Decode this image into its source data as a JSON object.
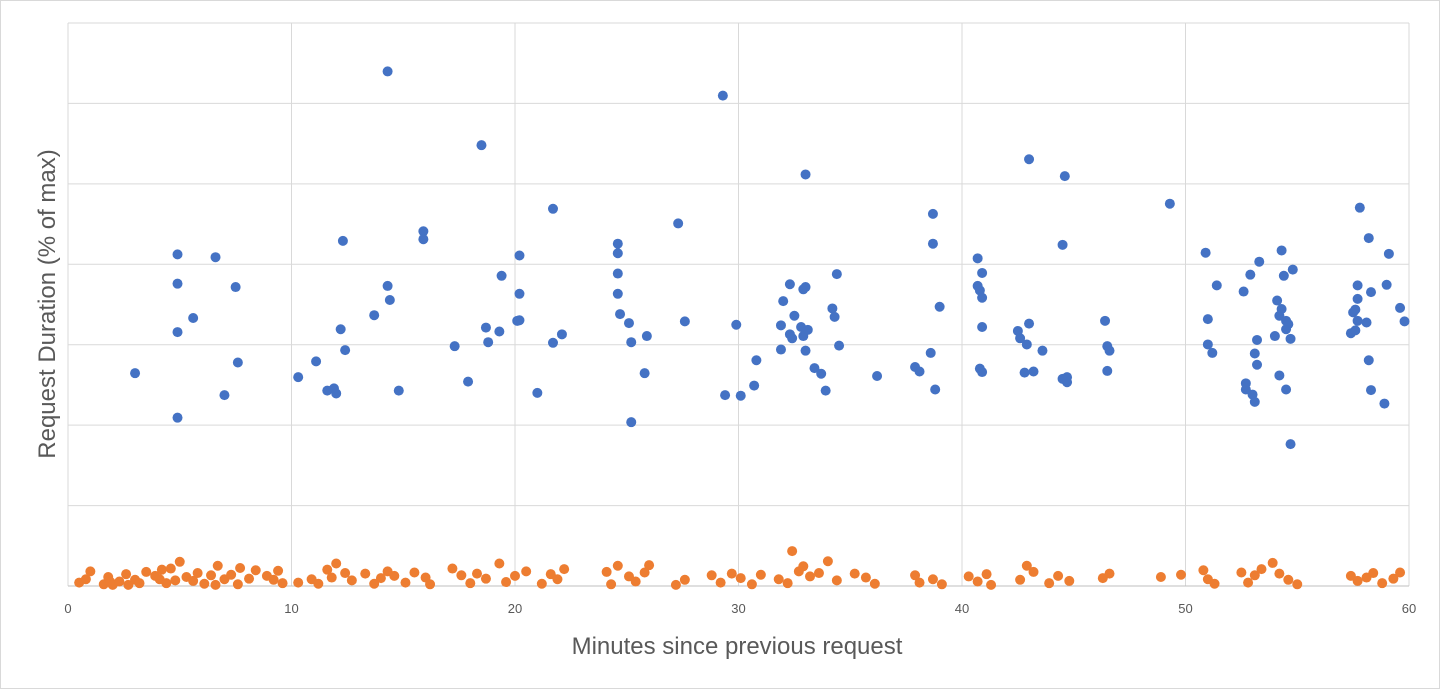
{
  "chart_data": {
    "type": "scatter",
    "title": "",
    "xlabel": "Minutes since previous request",
    "ylabel": "Request Duration (% of max)",
    "xlim": [
      0,
      60
    ],
    "ylim": [
      0,
      100
    ],
    "x_ticks": [
      "0",
      "10",
      "20",
      "30",
      "40",
      "50",
      "60"
    ],
    "grid": true,
    "legend": "none",
    "series": [
      {
        "color": "#4472C4",
        "points": [
          [
            3.0,
            37.8
          ],
          [
            4.9,
            29.9
          ],
          [
            4.9,
            45.1
          ],
          [
            4.9,
            53.7
          ],
          [
            4.9,
            58.9
          ],
          [
            5.6,
            47.6
          ],
          [
            6.6,
            58.4
          ],
          [
            7.0,
            33.9
          ],
          [
            7.5,
            53.1
          ],
          [
            7.6,
            39.7
          ],
          [
            10.3,
            37.1
          ],
          [
            11.1,
            39.9
          ],
          [
            11.6,
            34.7
          ],
          [
            11.9,
            35.1
          ],
          [
            12.0,
            34.2
          ],
          [
            12.2,
            45.6
          ],
          [
            12.3,
            61.3
          ],
          [
            12.4,
            41.9
          ],
          [
            13.7,
            48.1
          ],
          [
            14.3,
            53.3
          ],
          [
            14.3,
            91.4
          ],
          [
            14.4,
            50.8
          ],
          [
            14.8,
            34.7
          ],
          [
            15.9,
            61.6
          ],
          [
            15.9,
            63.0
          ],
          [
            17.3,
            42.6
          ],
          [
            17.9,
            36.3
          ],
          [
            18.5,
            78.3
          ],
          [
            18.7,
            45.9
          ],
          [
            18.8,
            43.3
          ],
          [
            19.3,
            45.2
          ],
          [
            19.4,
            55.1
          ],
          [
            20.1,
            47.1
          ],
          [
            20.2,
            47.2
          ],
          [
            20.2,
            51.9
          ],
          [
            20.2,
            58.7
          ],
          [
            21.0,
            34.3
          ],
          [
            21.7,
            67.0
          ],
          [
            21.7,
            43.2
          ],
          [
            22.1,
            44.7
          ],
          [
            24.6,
            55.5
          ],
          [
            24.6,
            60.8
          ],
          [
            24.6,
            59.1
          ],
          [
            24.6,
            51.9
          ],
          [
            24.7,
            48.3
          ],
          [
            25.1,
            46.7
          ],
          [
            25.2,
            29.1
          ],
          [
            25.2,
            43.3
          ],
          [
            25.8,
            37.8
          ],
          [
            25.9,
            44.4
          ],
          [
            27.3,
            64.4
          ],
          [
            27.6,
            47.0
          ],
          [
            29.3,
            87.1
          ],
          [
            29.4,
            33.9
          ],
          [
            29.9,
            46.4
          ],
          [
            30.1,
            33.8
          ],
          [
            30.7,
            35.6
          ],
          [
            30.8,
            40.1
          ],
          [
            31.9,
            42.0
          ],
          [
            31.9,
            46.3
          ],
          [
            32.0,
            50.6
          ],
          [
            32.3,
            44.7
          ],
          [
            32.3,
            53.6
          ],
          [
            32.4,
            44.0
          ],
          [
            32.5,
            48.0
          ],
          [
            32.8,
            46.0
          ],
          [
            32.9,
            44.4
          ],
          [
            32.9,
            52.7
          ],
          [
            33.0,
            53.1
          ],
          [
            33.0,
            73.1
          ],
          [
            33.0,
            41.8
          ],
          [
            33.1,
            45.5
          ],
          [
            33.4,
            38.7
          ],
          [
            33.7,
            37.7
          ],
          [
            33.9,
            34.7
          ],
          [
            34.2,
            49.3
          ],
          [
            34.3,
            47.8
          ],
          [
            34.4,
            55.4
          ],
          [
            34.5,
            42.7
          ],
          [
            36.2,
            37.3
          ],
          [
            37.9,
            38.9
          ],
          [
            38.1,
            38.1
          ],
          [
            38.6,
            41.4
          ],
          [
            38.7,
            60.8
          ],
          [
            38.7,
            66.1
          ],
          [
            38.8,
            34.9
          ],
          [
            39.0,
            49.6
          ],
          [
            40.7,
            58.2
          ],
          [
            40.7,
            53.3
          ],
          [
            40.8,
            52.5
          ],
          [
            40.8,
            38.6
          ],
          [
            40.9,
            51.2
          ],
          [
            40.9,
            55.6
          ],
          [
            40.9,
            38.0
          ],
          [
            40.9,
            46.0
          ],
          [
            42.5,
            45.3
          ],
          [
            42.6,
            44.0
          ],
          [
            42.8,
            37.9
          ],
          [
            42.9,
            42.9
          ],
          [
            43.0,
            46.6
          ],
          [
            43.0,
            75.8
          ],
          [
            43.2,
            38.1
          ],
          [
            43.6,
            41.8
          ],
          [
            44.5,
            60.6
          ],
          [
            44.5,
            36.8
          ],
          [
            44.6,
            72.8
          ],
          [
            44.7,
            36.2
          ],
          [
            44.7,
            37.1
          ],
          [
            46.4,
            47.1
          ],
          [
            46.5,
            38.2
          ],
          [
            46.5,
            42.6
          ],
          [
            46.6,
            41.8
          ],
          [
            49.3,
            67.9
          ],
          [
            50.9,
            59.2
          ],
          [
            51.0,
            42.9
          ],
          [
            51.0,
            47.4
          ],
          [
            51.2,
            41.4
          ],
          [
            51.4,
            53.4
          ],
          [
            52.6,
            52.3
          ],
          [
            52.7,
            36.0
          ],
          [
            52.7,
            34.9
          ],
          [
            52.9,
            55.3
          ],
          [
            53.0,
            34.0
          ],
          [
            53.1,
            32.7
          ],
          [
            53.1,
            41.3
          ],
          [
            53.2,
            43.7
          ],
          [
            53.2,
            39.3
          ],
          [
            53.3,
            57.6
          ],
          [
            54.0,
            44.4
          ],
          [
            54.1,
            50.7
          ],
          [
            54.2,
            48.0
          ],
          [
            54.2,
            37.4
          ],
          [
            54.3,
            59.6
          ],
          [
            54.3,
            49.2
          ],
          [
            54.4,
            55.1
          ],
          [
            54.5,
            47.1
          ],
          [
            54.5,
            45.6
          ],
          [
            54.5,
            34.9
          ],
          [
            54.6,
            46.5
          ],
          [
            54.7,
            43.9
          ],
          [
            54.7,
            25.2
          ],
          [
            54.8,
            56.2
          ],
          [
            57.4,
            44.9
          ],
          [
            57.5,
            48.6
          ],
          [
            57.6,
            45.4
          ],
          [
            57.6,
            49.1
          ],
          [
            57.7,
            51.0
          ],
          [
            57.7,
            53.4
          ],
          [
            57.7,
            47.1
          ],
          [
            57.8,
            67.2
          ],
          [
            58.1,
            46.8
          ],
          [
            58.2,
            40.1
          ],
          [
            58.2,
            61.8
          ],
          [
            58.3,
            34.8
          ],
          [
            58.3,
            52.2
          ],
          [
            58.9,
            32.4
          ],
          [
            59.0,
            53.5
          ],
          [
            59.1,
            59.0
          ],
          [
            59.6,
            49.4
          ],
          [
            59.8,
            47.0
          ]
        ]
      },
      {
        "color": "#ED7D31",
        "points": [
          [
            0.5,
            0.6
          ],
          [
            0.8,
            1.2
          ],
          [
            1.0,
            2.6
          ],
          [
            1.6,
            0.3
          ],
          [
            1.8,
            1.6
          ],
          [
            1.9,
            0.7
          ],
          [
            2.0,
            0.2
          ],
          [
            2.3,
            0.8
          ],
          [
            2.6,
            2.1
          ],
          [
            2.7,
            0.2
          ],
          [
            3.0,
            1.1
          ],
          [
            3.2,
            0.5
          ],
          [
            3.5,
            2.5
          ],
          [
            3.9,
            1.8
          ],
          [
            4.1,
            1.2
          ],
          [
            4.2,
            2.9
          ],
          [
            4.4,
            0.5
          ],
          [
            4.6,
            3.1
          ],
          [
            4.8,
            1.0
          ],
          [
            5.0,
            4.3
          ],
          [
            5.3,
            1.6
          ],
          [
            5.6,
            0.9
          ],
          [
            5.8,
            2.3
          ],
          [
            6.1,
            0.4
          ],
          [
            6.4,
            1.9
          ],
          [
            6.6,
            0.2
          ],
          [
            6.7,
            3.6
          ],
          [
            7.0,
            1.2
          ],
          [
            7.3,
            2.0
          ],
          [
            7.6,
            0.3
          ],
          [
            7.7,
            3.2
          ],
          [
            8.1,
            1.3
          ],
          [
            8.4,
            2.8
          ],
          [
            8.9,
            1.8
          ],
          [
            9.2,
            1.1
          ],
          [
            9.4,
            2.7
          ],
          [
            9.6,
            0.5
          ],
          [
            10.3,
            0.6
          ],
          [
            10.9,
            1.2
          ],
          [
            11.2,
            0.4
          ],
          [
            11.6,
            2.9
          ],
          [
            11.8,
            1.5
          ],
          [
            12.0,
            4.0
          ],
          [
            12.4,
            2.3
          ],
          [
            12.7,
            1.0
          ],
          [
            13.3,
            2.2
          ],
          [
            13.7,
            0.4
          ],
          [
            14.0,
            1.4
          ],
          [
            14.3,
            2.6
          ],
          [
            14.6,
            1.8
          ],
          [
            15.1,
            0.6
          ],
          [
            15.5,
            2.4
          ],
          [
            16.0,
            1.5
          ],
          [
            16.2,
            0.3
          ],
          [
            17.2,
            3.1
          ],
          [
            17.6,
            1.9
          ],
          [
            18.0,
            0.5
          ],
          [
            18.3,
            2.2
          ],
          [
            18.7,
            1.3
          ],
          [
            19.3,
            4.0
          ],
          [
            19.6,
            0.7
          ],
          [
            20.0,
            1.8
          ],
          [
            20.5,
            2.6
          ],
          [
            21.2,
            0.4
          ],
          [
            21.6,
            2.1
          ],
          [
            21.9,
            1.2
          ],
          [
            22.2,
            3.0
          ],
          [
            24.1,
            2.5
          ],
          [
            24.3,
            0.3
          ],
          [
            24.6,
            3.6
          ],
          [
            25.1,
            1.7
          ],
          [
            25.4,
            0.8
          ],
          [
            25.8,
            2.4
          ],
          [
            26.0,
            3.7
          ],
          [
            27.2,
            0.2
          ],
          [
            27.6,
            1.1
          ],
          [
            28.8,
            1.9
          ],
          [
            29.2,
            0.6
          ],
          [
            29.7,
            2.2
          ],
          [
            30.1,
            1.4
          ],
          [
            30.6,
            0.3
          ],
          [
            31.0,
            2.0
          ],
          [
            31.8,
            1.2
          ],
          [
            32.2,
            0.5
          ],
          [
            32.4,
            6.2
          ],
          [
            32.7,
            2.6
          ],
          [
            32.9,
            3.5
          ],
          [
            33.2,
            1.7
          ],
          [
            33.6,
            2.3
          ],
          [
            34.0,
            4.4
          ],
          [
            34.4,
            1.0
          ],
          [
            35.2,
            2.2
          ],
          [
            35.7,
            1.5
          ],
          [
            36.1,
            0.4
          ],
          [
            37.9,
            1.9
          ],
          [
            38.1,
            0.6
          ],
          [
            38.7,
            1.2
          ],
          [
            39.1,
            0.3
          ],
          [
            40.3,
            1.7
          ],
          [
            40.7,
            0.8
          ],
          [
            41.1,
            2.1
          ],
          [
            41.3,
            0.2
          ],
          [
            42.6,
            1.1
          ],
          [
            42.9,
            3.6
          ],
          [
            43.2,
            2.5
          ],
          [
            43.9,
            0.5
          ],
          [
            44.3,
            1.8
          ],
          [
            44.8,
            0.9
          ],
          [
            46.3,
            1.4
          ],
          [
            46.6,
            2.2
          ],
          [
            48.9,
            1.6
          ],
          [
            49.8,
            2.0
          ],
          [
            50.8,
            2.8
          ],
          [
            51.0,
            1.2
          ],
          [
            51.3,
            0.4
          ],
          [
            52.5,
            2.4
          ],
          [
            52.8,
            0.6
          ],
          [
            53.1,
            1.9
          ],
          [
            53.4,
            3.0
          ],
          [
            53.9,
            4.1
          ],
          [
            54.2,
            2.2
          ],
          [
            54.6,
            1.1
          ],
          [
            55.0,
            0.3
          ],
          [
            57.4,
            1.8
          ],
          [
            57.7,
            0.9
          ],
          [
            58.1,
            1.5
          ],
          [
            58.4,
            2.3
          ],
          [
            58.8,
            0.5
          ],
          [
            59.3,
            1.3
          ],
          [
            59.6,
            2.4
          ]
        ]
      }
    ]
  }
}
